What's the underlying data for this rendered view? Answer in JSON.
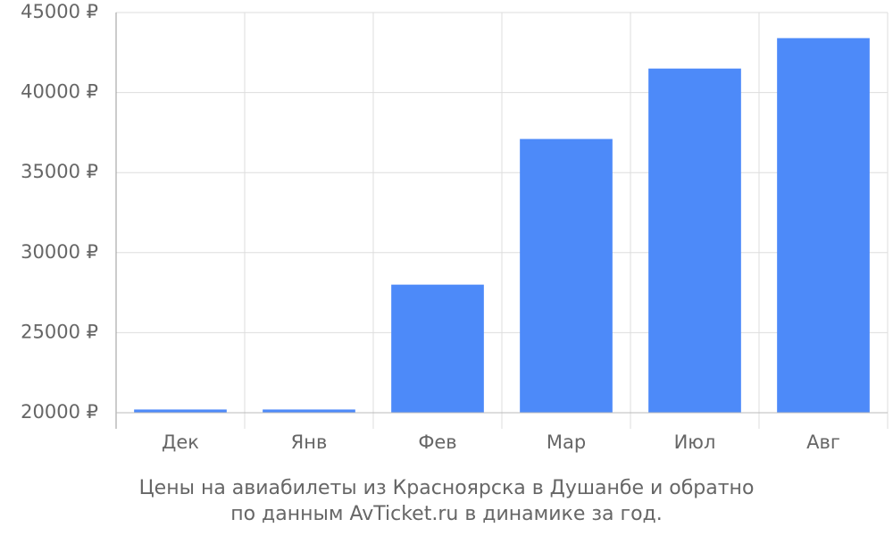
{
  "chart_data": {
    "type": "bar",
    "caption": [
      "Цены на авиабилеты из Красноярска в Душанбе и обратно",
      "по данным AvTicket.ru в динамике за год."
    ],
    "categories": [
      "Дек",
      "Янв",
      "Фев",
      "Мар",
      "Июл",
      "Авг"
    ],
    "values": [
      20200,
      20200,
      28000,
      37100,
      41500,
      43400
    ],
    "color": "#4d8af9",
    "ylim": [
      20000,
      45000
    ],
    "yticks": [
      {
        "value": 20000,
        "label": "20000 ₽"
      },
      {
        "value": 25000,
        "label": "25000 ₽"
      },
      {
        "value": 30000,
        "label": "30000 ₽"
      },
      {
        "value": 35000,
        "label": "35000 ₽"
      },
      {
        "value": 40000,
        "label": "40000 ₽"
      },
      {
        "value": 45000,
        "label": "45000 ₽"
      }
    ],
    "grid": true
  }
}
